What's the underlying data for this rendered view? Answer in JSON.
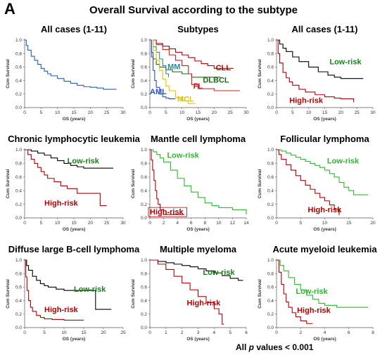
{
  "figure": {
    "panel_letter": "A",
    "title": "Overall Survival according to the subtype",
    "footnote_prefix": "All ",
    "footnote_p": "p",
    "footnote_suffix": " values < 0.001"
  },
  "colors": {
    "low": "#1a7f1a",
    "high": "#b30000"
  },
  "chart_data": [
    {
      "type": "line",
      "step": true,
      "title": "All cases (1-11)",
      "xlabel": "OS (years)",
      "ylabel": "Cum Survival",
      "xlim": [
        0,
        30
      ],
      "xticks": [
        0,
        5,
        10,
        15,
        20,
        25,
        30
      ],
      "ylim": [
        0,
        1.0
      ],
      "yticks": [
        0.0,
        0.2,
        0.4,
        0.6,
        0.8,
        1.0
      ],
      "series": [
        {
          "name": "",
          "color": "#1f5fbf",
          "x": [
            0,
            0.5,
            1,
            2,
            3,
            4,
            5,
            6,
            7,
            8,
            10,
            12,
            14,
            16,
            18,
            20,
            22,
            24,
            28
          ],
          "y": [
            1.0,
            0.92,
            0.85,
            0.76,
            0.7,
            0.64,
            0.58,
            0.54,
            0.5,
            0.47,
            0.43,
            0.39,
            0.36,
            0.33,
            0.31,
            0.3,
            0.29,
            0.27,
            0.27
          ]
        }
      ]
    },
    {
      "type": "line",
      "step": true,
      "title": "Subtypes",
      "xlabel": "OS (years)",
      "ylabel": "Cum Survival",
      "xlim": [
        0,
        30
      ],
      "xticks": [
        0,
        5,
        10,
        15,
        20,
        25,
        30
      ],
      "ylim": [
        0,
        1.0
      ],
      "yticks": [
        0.0,
        0.2,
        0.4,
        0.6,
        0.8,
        1.0
      ],
      "series": [
        {
          "name": "CLL",
          "color": "#b30000",
          "x": [
            0,
            2,
            4,
            6,
            8,
            10,
            12,
            14,
            16,
            18,
            20,
            22,
            25,
            26
          ],
          "y": [
            1.0,
            0.95,
            0.91,
            0.87,
            0.82,
            0.78,
            0.74,
            0.69,
            0.65,
            0.62,
            0.58,
            0.58,
            0.58,
            0.58
          ]
        },
        {
          "name": "DLBCL",
          "color": "#1a6b1a",
          "x": [
            0,
            0.5,
            1,
            2,
            3,
            5,
            7,
            10,
            13,
            16,
            20,
            22
          ],
          "y": [
            1.0,
            0.82,
            0.72,
            0.64,
            0.6,
            0.56,
            0.53,
            0.5,
            0.45,
            0.45,
            0.45,
            0.45
          ]
        },
        {
          "name": "MM",
          "color": "#2a8a9a",
          "x": [
            0,
            1,
            2,
            3,
            4,
            5,
            5.8
          ],
          "y": [
            1.0,
            0.9,
            0.82,
            0.72,
            0.62,
            0.5,
            0.45
          ]
        },
        {
          "name": "FL",
          "color": "#cc2222",
          "x": [
            0,
            2,
            4,
            6,
            8,
            10,
            12,
            13,
            15,
            20,
            23,
            28
          ],
          "y": [
            1.0,
            0.93,
            0.86,
            0.78,
            0.7,
            0.62,
            0.5,
            0.34,
            0.28,
            0.25,
            0.25,
            0.25
          ]
        },
        {
          "name": "MCL",
          "color": "#e8c000",
          "x": [
            0,
            1,
            2,
            3,
            4,
            5,
            6,
            8,
            10,
            12,
            14
          ],
          "y": [
            1.0,
            0.85,
            0.7,
            0.55,
            0.42,
            0.32,
            0.25,
            0.15,
            0.1,
            0.06,
            0.05
          ]
        },
        {
          "name": "AML",
          "color": "#2a4fd6",
          "x": [
            0,
            0.5,
            1,
            1.5,
            2,
            3,
            4,
            5,
            6,
            8
          ],
          "y": [
            1.0,
            0.75,
            0.55,
            0.4,
            0.3,
            0.2,
            0.16,
            0.14,
            0.13,
            0.13
          ]
        }
      ],
      "annotations": [
        "CLL",
        "DLBCL",
        "MM",
        "FL",
        "MCL",
        "AML"
      ]
    },
    {
      "type": "line",
      "step": true,
      "title": "All cases (1-11)",
      "xlabel": "OS (years)",
      "ylabel": "Cum Survival",
      "xlim": [
        0,
        30
      ],
      "xticks": [
        0,
        5,
        10,
        15,
        20,
        25,
        30
      ],
      "ylim": [
        0,
        1.0
      ],
      "yticks": [
        0.0,
        0.2,
        0.4,
        0.6,
        0.8,
        1.0
      ],
      "series": [
        {
          "name": "Low-risk",
          "color": "#000000",
          "x": [
            0,
            1,
            2,
            3,
            5,
            7,
            10,
            13,
            16,
            18,
            20,
            22,
            25,
            27
          ],
          "y": [
            1.0,
            0.94,
            0.88,
            0.83,
            0.75,
            0.68,
            0.6,
            0.53,
            0.48,
            0.45,
            0.43,
            0.43,
            0.43,
            0.43
          ]
        },
        {
          "name": "High-risk",
          "color": "#b30000",
          "x": [
            0,
            0.5,
            1,
            2,
            3,
            4,
            5,
            7,
            9,
            12,
            15,
            18,
            20,
            22,
            24
          ],
          "y": [
            1.0,
            0.8,
            0.66,
            0.52,
            0.44,
            0.38,
            0.33,
            0.27,
            0.23,
            0.19,
            0.16,
            0.14,
            0.13,
            0.13,
            0.08
          ]
        }
      ],
      "annotations": [
        "Low-risk",
        "High-risk"
      ]
    },
    {
      "type": "line",
      "step": true,
      "title": "Chronic lymphocytic leukemia",
      "xlabel": "OS (years)",
      "ylabel": "Cum Survival",
      "xlim": [
        0,
        30
      ],
      "xticks": [
        0,
        5,
        10,
        15,
        20,
        25,
        30
      ],
      "ylim": [
        0,
        1.0
      ],
      "yticks": [
        0.0,
        0.2,
        0.4,
        0.6,
        0.8,
        1.0
      ],
      "series": [
        {
          "name": "Low-risk",
          "color": "#000000",
          "x": [
            0,
            2,
            4,
            6,
            8,
            10,
            12,
            14,
            16,
            18,
            20,
            27
          ],
          "y": [
            1.0,
            0.98,
            0.95,
            0.92,
            0.88,
            0.84,
            0.8,
            0.77,
            0.75,
            0.73,
            0.73,
            0.73
          ]
        },
        {
          "name": "High-risk",
          "color": "#b30000",
          "x": [
            0,
            1,
            2,
            3,
            4,
            5,
            6,
            7,
            9,
            11,
            13,
            16,
            20,
            23,
            25
          ],
          "y": [
            1.0,
            0.93,
            0.86,
            0.8,
            0.74,
            0.68,
            0.63,
            0.58,
            0.53,
            0.47,
            0.43,
            0.36,
            0.36,
            0.18,
            0.18
          ]
        }
      ],
      "annotations": [
        "Low-risk",
        "High-risk"
      ]
    },
    {
      "type": "line",
      "step": true,
      "title": "Mantle cell lymphoma",
      "xlabel": "OS (years)",
      "ylabel": "Cum Survival",
      "xlim": [
        0,
        14
      ],
      "xticks": [
        0,
        2,
        4,
        6,
        8,
        10,
        12,
        14
      ],
      "ylim": [
        0,
        1.0
      ],
      "yticks": [
        0.0,
        0.2,
        0.4,
        0.6,
        0.8,
        1.0
      ],
      "series": [
        {
          "name": "Low-risk",
          "color": "#2db82d",
          "x": [
            0,
            0.5,
            1,
            1.5,
            2,
            3,
            4,
            5,
            6,
            7,
            8,
            9,
            10,
            12,
            13.5,
            14
          ],
          "y": [
            1.0,
            0.97,
            0.93,
            0.88,
            0.82,
            0.7,
            0.58,
            0.47,
            0.38,
            0.3,
            0.22,
            0.18,
            0.15,
            0.12,
            0.12,
            0.05
          ]
        },
        {
          "name": "High-risk",
          "color": "#b30000",
          "x": [
            0,
            0.2,
            0.4,
            0.6,
            0.8,
            1,
            1.2,
            1.5,
            2,
            3,
            4,
            5
          ],
          "y": [
            1.0,
            0.85,
            0.7,
            0.55,
            0.4,
            0.28,
            0.2,
            0.12,
            0.05,
            0.05,
            0.05,
            0.05
          ]
        }
      ],
      "annotations": [
        "Low-risk",
        "High-risk"
      ]
    },
    {
      "type": "line",
      "step": true,
      "title": "Follicular lymphoma",
      "xlabel": "OS (years)",
      "ylabel": "Cum Survival",
      "xlim": [
        0,
        20
      ],
      "xticks": [
        0,
        5,
        10,
        15,
        20
      ],
      "ylim": [
        0,
        1.0
      ],
      "yticks": [
        0.0,
        0.2,
        0.4,
        0.6,
        0.8,
        1.0
      ],
      "series": [
        {
          "name": "Low-risk",
          "color": "#2db82d",
          "x": [
            0,
            1,
            2,
            3,
            4,
            5,
            6,
            7,
            8,
            9,
            10,
            11,
            12,
            13,
            14,
            15,
            16,
            17,
            19
          ],
          "y": [
            1.0,
            0.98,
            0.95,
            0.92,
            0.89,
            0.86,
            0.83,
            0.8,
            0.77,
            0.74,
            0.7,
            0.65,
            0.6,
            0.52,
            0.45,
            0.4,
            0.34,
            0.34,
            0.34
          ]
        },
        {
          "name": "High-risk",
          "color": "#b30000",
          "x": [
            0,
            0.5,
            1,
            2,
            3,
            4,
            5,
            6,
            7,
            8,
            9,
            10,
            11,
            12,
            13
          ],
          "y": [
            1.0,
            0.93,
            0.86,
            0.78,
            0.7,
            0.62,
            0.55,
            0.48,
            0.42,
            0.36,
            0.3,
            0.25,
            0.19,
            0.13,
            0.04
          ]
        }
      ],
      "annotations": [
        "Low-risk",
        "High-risk"
      ]
    },
    {
      "type": "line",
      "step": true,
      "title": "Diffuse large B-cell lymphoma",
      "xlabel": "OS (years)",
      "ylabel": "Cum Survival",
      "xlim": [
        0,
        25
      ],
      "xticks": [
        0,
        5,
        10,
        15,
        20,
        25
      ],
      "ylim": [
        0,
        1.0
      ],
      "yticks": [
        0.0,
        0.2,
        0.4,
        0.6,
        0.8,
        1.0
      ],
      "series": [
        {
          "name": "Low-risk",
          "color": "#000000",
          "x": [
            0,
            0.5,
            1,
            2,
            3,
            4,
            5,
            6,
            8,
            10,
            12,
            14,
            16,
            18,
            22
          ],
          "y": [
            1.0,
            0.92,
            0.85,
            0.76,
            0.7,
            0.65,
            0.62,
            0.6,
            0.57,
            0.55,
            0.55,
            0.55,
            0.55,
            0.27,
            0.27
          ]
        },
        {
          "name": "High-risk",
          "color": "#b30000",
          "x": [
            0,
            0.3,
            0.6,
            1,
            1.5,
            2,
            3,
            4,
            5,
            7,
            10,
            13,
            15
          ],
          "y": [
            1.0,
            0.75,
            0.55,
            0.4,
            0.3,
            0.24,
            0.18,
            0.15,
            0.13,
            0.12,
            0.11,
            0.11,
            0.11
          ]
        }
      ],
      "annotations": [
        "Low-risk",
        "High-risk"
      ]
    },
    {
      "type": "line",
      "step": true,
      "title": "Multiple myeloma",
      "xlabel": "OS (years)",
      "ylabel": "Cum Survival",
      "xlim": [
        0,
        6
      ],
      "xticks": [
        0,
        1,
        2,
        3,
        4,
        5,
        6
      ],
      "ylim": [
        0,
        1.0
      ],
      "yticks": [
        0.0,
        0.2,
        0.4,
        0.6,
        0.8,
        1.0
      ],
      "series": [
        {
          "name": "Low-risk",
          "color": "#000000",
          "x": [
            0,
            0.5,
            1,
            1.5,
            2,
            2.5,
            3,
            3.5,
            4,
            4.5,
            5,
            5.5,
            5.8
          ],
          "y": [
            1.0,
            0.98,
            0.96,
            0.94,
            0.92,
            0.9,
            0.87,
            0.84,
            0.81,
            0.77,
            0.73,
            0.7,
            0.7
          ]
        },
        {
          "name": "High-risk",
          "color": "#b30000",
          "x": [
            0,
            0.5,
            1,
            1.5,
            2,
            2.5,
            3,
            3.5,
            4,
            4.3,
            4.5,
            4.6
          ],
          "y": [
            1.0,
            0.94,
            0.86,
            0.76,
            0.66,
            0.56,
            0.46,
            0.37,
            0.28,
            0.2,
            0.05,
            0.05
          ]
        }
      ],
      "annotations": [
        "Low-risk",
        "High-risk"
      ]
    },
    {
      "type": "line",
      "step": true,
      "title": "Acute myeloid leukemia",
      "xlabel": "OS (years)",
      "ylabel": "Cum Survival",
      "xlim": [
        0,
        8
      ],
      "xticks": [
        0,
        2,
        4,
        6,
        8
      ],
      "ylim": [
        0,
        1.0
      ],
      "yticks": [
        0.0,
        0.2,
        0.4,
        0.6,
        0.8,
        1.0
      ],
      "series": [
        {
          "name": "Low-risk",
          "color": "#2db82d",
          "x": [
            0,
            0.3,
            0.6,
            1,
            1.5,
            2,
            2.5,
            3,
            3.5,
            4,
            5,
            6,
            7,
            7.6
          ],
          "y": [
            1.0,
            0.92,
            0.84,
            0.74,
            0.64,
            0.56,
            0.48,
            0.42,
            0.36,
            0.33,
            0.3,
            0.3,
            0.3,
            0.3
          ]
        },
        {
          "name": "High-risk",
          "color": "#b30000",
          "x": [
            0,
            0.2,
            0.4,
            0.6,
            0.8,
            1,
            1.3,
            1.6,
            2,
            2.5,
            3
          ],
          "y": [
            1.0,
            0.82,
            0.64,
            0.5,
            0.38,
            0.3,
            0.22,
            0.16,
            0.1,
            0.06,
            0.06
          ]
        }
      ],
      "annotations": [
        "Low-risk",
        "High-risk"
      ]
    }
  ]
}
